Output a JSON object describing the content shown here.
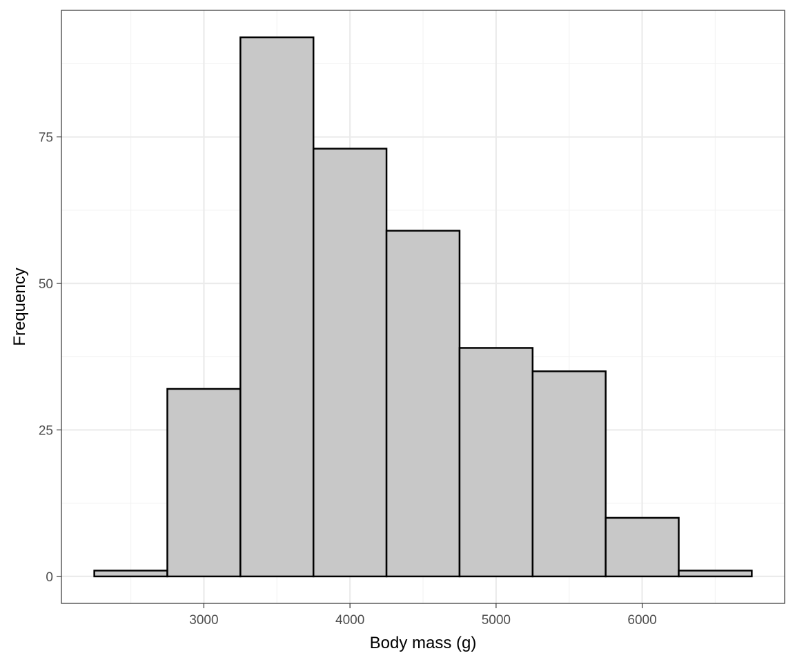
{
  "chart_data": {
    "type": "bar",
    "subtype": "histogram",
    "bins": [
      {
        "start": 2250,
        "end": 2750,
        "count": 1
      },
      {
        "start": 2750,
        "end": 3250,
        "count": 32
      },
      {
        "start": 3250,
        "end": 3750,
        "count": 92
      },
      {
        "start": 3750,
        "end": 4250,
        "count": 73
      },
      {
        "start": 4250,
        "end": 4750,
        "count": 59
      },
      {
        "start": 4750,
        "end": 5250,
        "count": 39
      },
      {
        "start": 5250,
        "end": 5750,
        "count": 35
      },
      {
        "start": 5750,
        "end": 6250,
        "count": 10
      },
      {
        "start": 6250,
        "end": 6750,
        "count": 1
      }
    ],
    "xlabel": "Body mass (g)",
    "ylabel": "Frequency",
    "xlim": [
      2025,
      6975
    ],
    "ylim": [
      -4.6,
      96.6
    ],
    "xticks": [
      3000,
      4000,
      5000,
      6000
    ],
    "xtick_labels": [
      "3000",
      "4000",
      "5000",
      "6000"
    ],
    "yticks": [
      0,
      25,
      50,
      75
    ],
    "ytick_labels": [
      "0",
      "25",
      "50",
      "75"
    ],
    "x_minor_ticks": [
      2500,
      3500,
      4500,
      5500,
      6500
    ],
    "y_minor_ticks": [
      12.5,
      37.5,
      62.5,
      87.5
    ],
    "grid": true,
    "legend": "none",
    "colors": {
      "bar_fill": "#c8c8c8",
      "bar_stroke": "#000000",
      "grid_major": "#ebebeb",
      "grid_minor": "#f3f3f3",
      "panel_border": "#333333",
      "background": "#ffffff"
    }
  }
}
